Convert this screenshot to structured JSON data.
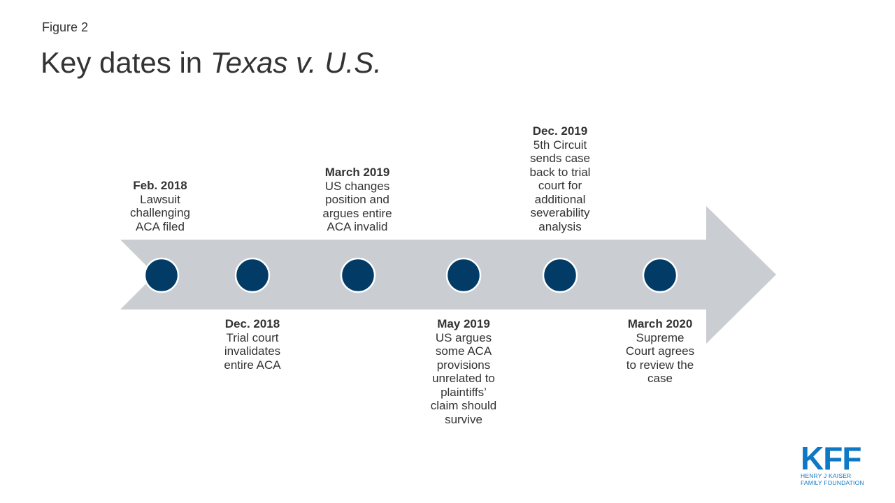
{
  "figure_label": "Figure 2",
  "title": {
    "prefix": "Key dates in ",
    "italic": "Texas v. U.S."
  },
  "colors": {
    "arrow": "#cacdd2",
    "dot": "#023b65",
    "dot_ring": "#ffffff",
    "text": "#333333",
    "brand": "#0f78c4"
  },
  "events": [
    {
      "date": "Feb. 2018",
      "description": "Lawsuit\nchallenging\nACA filed"
    },
    {
      "date": "Dec. 2018",
      "description": "Trial court\ninvalidates\nentire ACA"
    },
    {
      "date": "March 2019",
      "description": "US changes\nposition and\nargues entire\nACA invalid"
    },
    {
      "date": "May 2019",
      "description": "US argues\nsome ACA\nprovisions\nunrelated to\nplaintiffs’\nclaim should\nsurvive"
    },
    {
      "date": "Dec. 2019",
      "description": "5th Circuit\nsends case\nback to trial\ncourt for\nadditional\nseverability\nanalysis"
    },
    {
      "date": "March 2020",
      "description": "Supreme\nCourt agrees\nto review the\ncase"
    }
  ],
  "logo": {
    "letters": "KFF",
    "subtitle": "HENRY J KAISER\nFAMILY FOUNDATION"
  }
}
